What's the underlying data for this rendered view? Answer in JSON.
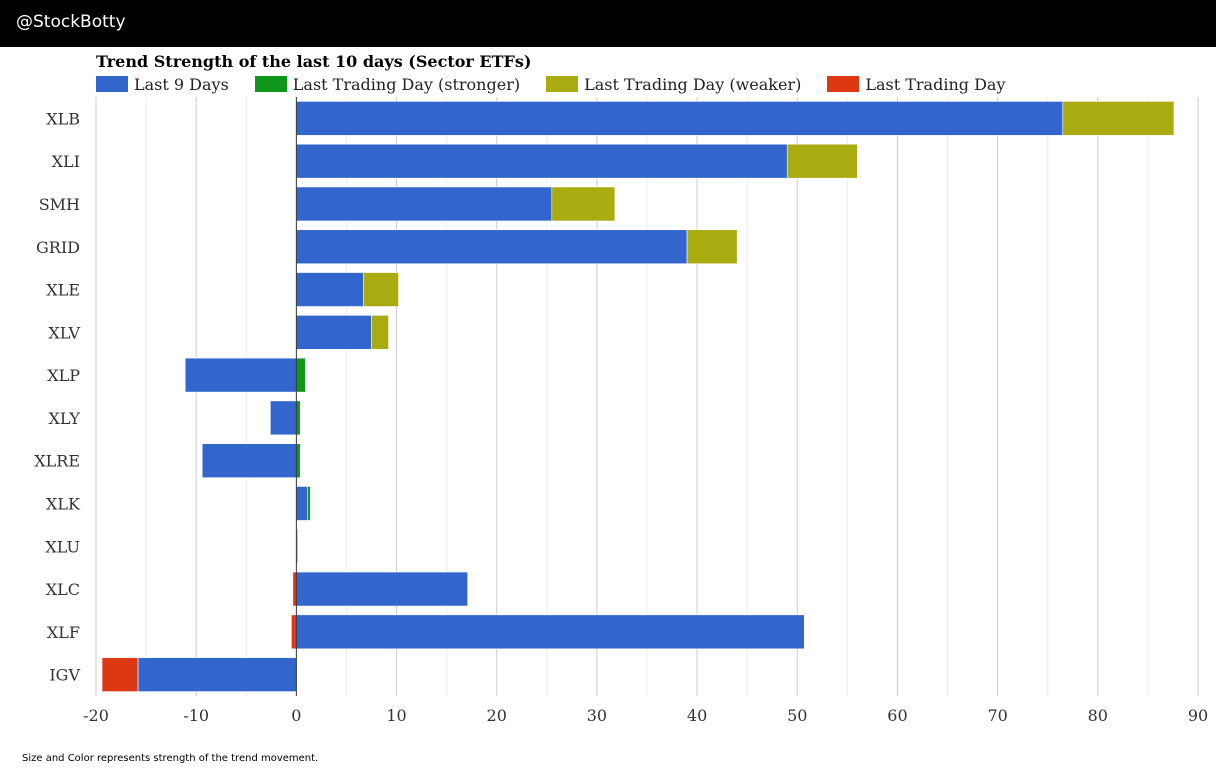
{
  "header": {
    "title": "@StockBotty"
  },
  "chart_data": {
    "type": "bar",
    "orientation": "horizontal",
    "stacked": true,
    "title": "Trend Strength of the last 10 days (Sector ETFs)",
    "legend": [
      {
        "name": "Last 9 Days",
        "color": "#3366cc"
      },
      {
        "name": "Last Trading Day (stronger)",
        "color": "#109618"
      },
      {
        "name": "Last Trading Day (weaker)",
        "color": "#aaaa11"
      },
      {
        "name": "Last Trading Day",
        "color": "#dc3912"
      }
    ],
    "categories": [
      "XLB",
      "XLI",
      "SMH",
      "GRID",
      "XLE",
      "XLV",
      "XLP",
      "XLY",
      "XLRE",
      "XLK",
      "XLU",
      "XLC",
      "XLF",
      "IGV"
    ],
    "bars": [
      {
        "category": "XLB",
        "segments": [
          {
            "series": "Last 9 Days",
            "from": 0,
            "to": 76.5
          },
          {
            "series": "Last Trading Day (weaker)",
            "from": 76.5,
            "to": 87.6
          }
        ]
      },
      {
        "category": "XLI",
        "segments": [
          {
            "series": "Last 9 Days",
            "from": 0,
            "to": 49.0
          },
          {
            "series": "Last Trading Day (weaker)",
            "from": 49.0,
            "to": 56.0
          }
        ]
      },
      {
        "category": "SMH",
        "segments": [
          {
            "series": "Last 9 Days",
            "from": 0,
            "to": 25.5
          },
          {
            "series": "Last Trading Day (weaker)",
            "from": 25.5,
            "to": 31.8
          }
        ]
      },
      {
        "category": "GRID",
        "segments": [
          {
            "series": "Last 9 Days",
            "from": 0,
            "to": 39.0
          },
          {
            "series": "Last Trading Day (weaker)",
            "from": 39.0,
            "to": 44.0
          }
        ]
      },
      {
        "category": "XLE",
        "segments": [
          {
            "series": "Last 9 Days",
            "from": 0,
            "to": 6.7
          },
          {
            "series": "Last Trading Day (weaker)",
            "from": 6.7,
            "to": 10.2
          }
        ]
      },
      {
        "category": "XLV",
        "segments": [
          {
            "series": "Last 9 Days",
            "from": 0,
            "to": 7.5
          },
          {
            "series": "Last Trading Day (weaker)",
            "from": 7.5,
            "to": 9.2
          }
        ]
      },
      {
        "category": "XLP",
        "segments": [
          {
            "series": "Last 9 Days",
            "from": -11.1,
            "to": 0
          },
          {
            "series": "Last Trading Day (stronger)",
            "from": 0,
            "to": 0.9
          }
        ]
      },
      {
        "category": "XLY",
        "segments": [
          {
            "series": "Last 9 Days",
            "from": -2.6,
            "to": 0
          },
          {
            "series": "Last Trading Day (stronger)",
            "from": 0,
            "to": 0.4
          }
        ]
      },
      {
        "category": "XLRE",
        "segments": [
          {
            "series": "Last 9 Days",
            "from": -9.4,
            "to": 0
          },
          {
            "series": "Last Trading Day (stronger)",
            "from": 0,
            "to": 0.4
          }
        ]
      },
      {
        "category": "XLK",
        "segments": [
          {
            "series": "Last 9 Days",
            "from": 0,
            "to": 1.1
          },
          {
            "series": "Last Trading Day (stronger)",
            "from": 1.1,
            "to": 1.4
          }
        ]
      },
      {
        "category": "XLU",
        "segments": [
          {
            "series": "Last Trading Day (weaker)",
            "from": 0,
            "to": 0.15
          }
        ]
      },
      {
        "category": "XLC",
        "segments": [
          {
            "series": "Last Trading Day",
            "from": -0.35,
            "to": 0
          },
          {
            "series": "Last 9 Days",
            "from": 0,
            "to": 17.1
          }
        ]
      },
      {
        "category": "XLF",
        "segments": [
          {
            "series": "Last Trading Day",
            "from": -0.5,
            "to": 0
          },
          {
            "series": "Last 9 Days",
            "from": 0,
            "to": 50.7
          }
        ]
      },
      {
        "category": "IGV",
        "segments": [
          {
            "series": "Last Trading Day",
            "from": -19.4,
            "to": -15.8
          },
          {
            "series": "Last 9 Days",
            "from": -15.8,
            "to": 0
          }
        ]
      }
    ],
    "xlim": [
      -20,
      90
    ],
    "xticks": [
      "-20",
      "-10",
      "0",
      "10",
      "20",
      "30",
      "40",
      "50",
      "60",
      "70",
      "80",
      "90"
    ],
    "xtick_values": [
      -20,
      -10,
      0,
      10,
      20,
      30,
      40,
      50,
      60,
      70,
      80,
      90
    ],
    "grid": true,
    "legend_position": "top-left"
  },
  "footer": {
    "note": "Size and Color represents strength of the trend movement."
  }
}
